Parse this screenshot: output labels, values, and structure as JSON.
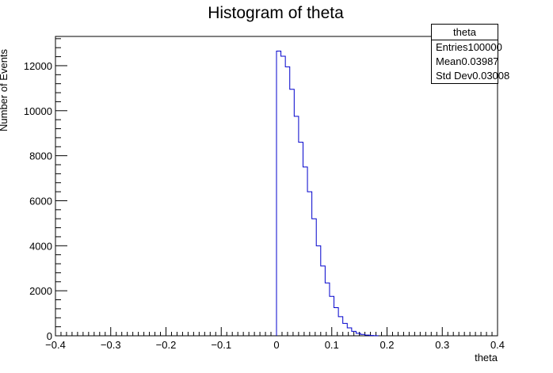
{
  "chart_data": {
    "type": "bar",
    "style": "step-histogram",
    "title": "Histogram of theta",
    "xlabel": "theta",
    "ylabel": "Number of Events",
    "xlim": [
      -0.4,
      0.4
    ],
    "ylim": [
      0,
      13300
    ],
    "xticks": [
      -0.4,
      -0.3,
      -0.2,
      -0.1,
      0,
      0.1,
      0.2,
      0.3,
      0.4
    ],
    "xtick_labels": [
      "−0.4",
      "−0.3",
      "−0.2",
      "−0.1",
      "0",
      "0.1",
      "0.2",
      "0.3",
      "0.4"
    ],
    "yticks": [
      0,
      2000,
      4000,
      6000,
      8000,
      10000,
      12000
    ],
    "ytick_labels": [
      "0",
      "2000",
      "4000",
      "6000",
      "8000",
      "10000",
      "12000"
    ],
    "bin_width": 0.008,
    "bin_edges_start": 0.0,
    "values": [
      12650,
      12420,
      11950,
      10950,
      9750,
      8600,
      7500,
      6400,
      5200,
      4000,
      3100,
      2350,
      1750,
      1250,
      850,
      550,
      350,
      200,
      110,
      60,
      30,
      15,
      5
    ],
    "line_color": "#0000cc",
    "grid": false,
    "legend": "none"
  },
  "stats": {
    "title": "theta",
    "rows": [
      {
        "label": "Entries",
        "value": "100000"
      },
      {
        "label": "Mean",
        "value": "0.03987"
      },
      {
        "label": "Std Dev",
        "value": "0.03008"
      }
    ]
  }
}
